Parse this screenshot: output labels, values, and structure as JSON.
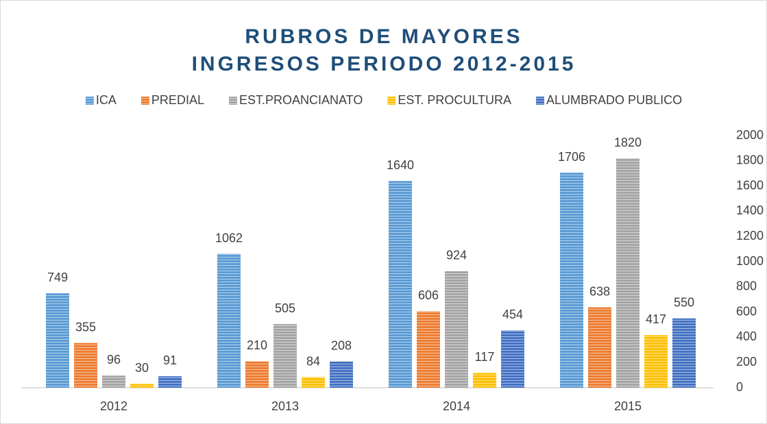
{
  "chart_data": {
    "type": "bar",
    "title": "RUBROS DE MAYORES INGRESOS PERIODO 2012-2015",
    "categories": [
      "2012",
      "2013",
      "2014",
      "2015"
    ],
    "series": [
      {
        "name": "ICA",
        "color": "#5b9bd5",
        "values": [
          749,
          1062,
          1640,
          1706
        ]
      },
      {
        "name": "PREDIAL",
        "color": "#ed7d31",
        "values": [
          355,
          210,
          606,
          638
        ]
      },
      {
        "name": "EST.PROANCIANATO",
        "color": "#a5a5a5",
        "values": [
          96,
          505,
          924,
          1820
        ]
      },
      {
        "name": "EST. PROCULTURA",
        "color": "#ffc000",
        "values": [
          30,
          84,
          117,
          417
        ]
      },
      {
        "name": "ALUMBRADO PUBLICO",
        "color": "#4472c4",
        "values": [
          91,
          208,
          454,
          550
        ]
      }
    ],
    "ylim": [
      0,
      2000
    ],
    "yticks": [
      0,
      200,
      400,
      600,
      800,
      1000,
      1200,
      1400,
      1600,
      1800,
      2000
    ],
    "legend": "top"
  }
}
